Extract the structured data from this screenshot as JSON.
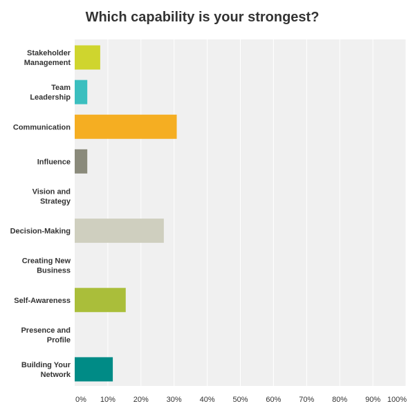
{
  "chart_data": {
    "type": "bar",
    "orientation": "horizontal",
    "title": "Which capability is your strongest?",
    "xlabel": "",
    "ylabel": "",
    "xlim": [
      0,
      100
    ],
    "grid": true,
    "legend": "none",
    "categories": [
      "Stakeholder Management",
      "Team Leadership",
      "Communication",
      "Influence",
      "Vision and Strategy",
      "Decision-Making",
      "Creating New Business",
      "Self-Awareness",
      "Presence and Profile",
      "Building Your Network"
    ],
    "category_label_lines": [
      [
        "Stakeholder",
        "Management"
      ],
      [
        "Team",
        "Leadership"
      ],
      [
        "Communication"
      ],
      [
        "Influence"
      ],
      [
        "Vision and",
        "Strategy"
      ],
      [
        "Decision-Making"
      ],
      [
        "Creating New",
        "Business"
      ],
      [
        "Self-Awareness"
      ],
      [
        "Presence and",
        "Profile"
      ],
      [
        "Building Your",
        "Network"
      ]
    ],
    "values": [
      7.7,
      3.8,
      30.8,
      3.8,
      0,
      26.9,
      0,
      15.4,
      0,
      11.5
    ],
    "colors": [
      "#cfd52e",
      "#3bbfbf",
      "#f5ae22",
      "#8a8a7b",
      "#a9a9a9",
      "#cfcfbf",
      "#a9a9a9",
      "#aabe3a",
      "#a9a9a9",
      "#008b86"
    ],
    "tick_labels": [
      "0%",
      "10%",
      "20%",
      "30%",
      "40%",
      "50%",
      "60%",
      "70%",
      "80%",
      "90%",
      "100%"
    ],
    "tick_values": [
      0,
      10,
      20,
      30,
      40,
      50,
      60,
      70,
      80,
      90,
      100
    ],
    "plot_background": "#f0f0f0",
    "grid_color": "#ffffff"
  }
}
